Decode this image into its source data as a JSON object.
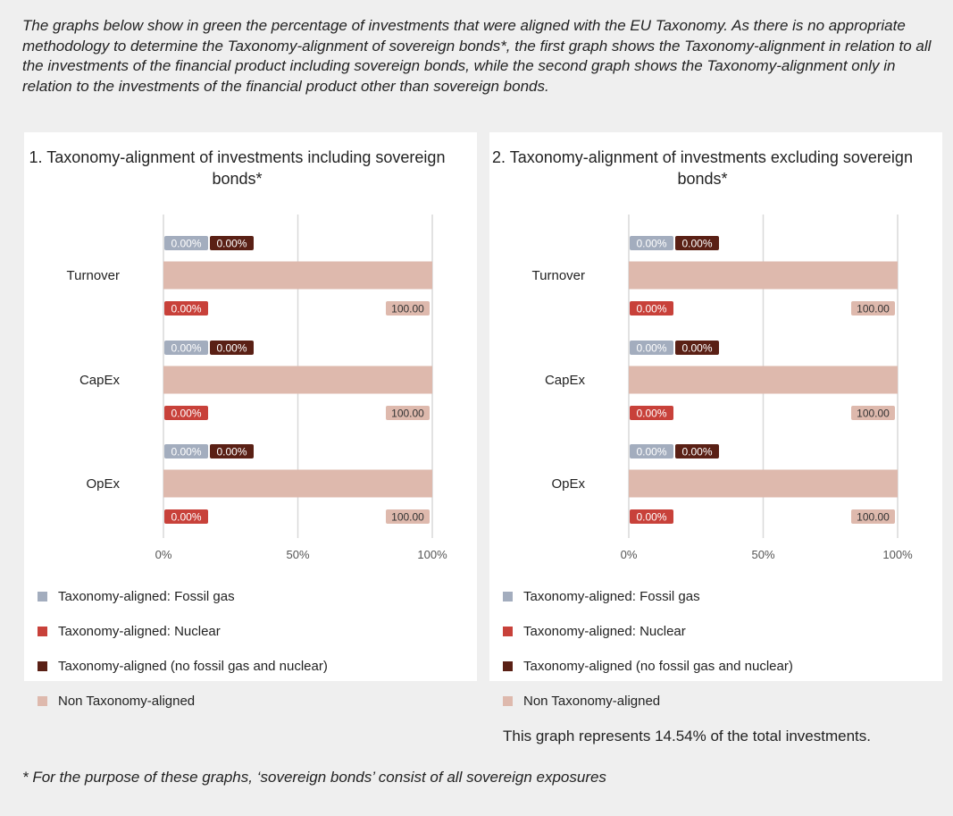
{
  "intro_text": "The graphs below show in green the percentage of investments that were aligned with the EU Taxonomy. As there is no appropriate methodology to determine the Taxonomy-alignment of sovereign bonds*, the first graph shows the Taxonomy-alignment in relation to all the investments of the financial product including sovereign bonds, while the second graph shows the Taxonomy-alignment only in relation to the investments of the financial product other than sovereign bonds.",
  "footnote": "* For the purpose of these graphs, ‘sovereign bonds’ consist of all sovereign exposures",
  "colors": {
    "fossil_gas": "#a3adbe",
    "nuclear": "#c8413a",
    "aligned_other": "#5a2015",
    "non_aligned": "#deb9ad"
  },
  "legend": [
    {
      "key": "fossil_gas",
      "label": "Taxonomy-aligned: Fossil gas"
    },
    {
      "key": "nuclear",
      "label": "Taxonomy-aligned: Nuclear"
    },
    {
      "key": "aligned_other",
      "label": "Taxonomy-aligned (no fossil gas and nuclear)"
    },
    {
      "key": "non_aligned",
      "label": "Non Taxonomy-aligned"
    }
  ],
  "chart_data": [
    {
      "type": "bar",
      "orientation": "horizontal",
      "stacked": true,
      "title": "1. Taxonomy-alignment of investments including sovereign bonds*",
      "categories": [
        "Turnover",
        "CapEx",
        "OpEx"
      ],
      "xlim": [
        0,
        100
      ],
      "x_ticks": [
        "0%",
        "50%",
        "100%"
      ],
      "series": [
        {
          "name": "Taxonomy-aligned: Fossil gas",
          "key": "fossil_gas",
          "values": [
            0,
            0,
            0
          ],
          "labels": [
            "0.00%",
            "0.00%",
            "0.00%"
          ]
        },
        {
          "name": "Taxonomy-aligned: Nuclear",
          "key": "nuclear",
          "values": [
            0,
            0,
            0
          ],
          "labels": [
            "0.00%",
            "0.00%",
            "0.00%"
          ]
        },
        {
          "name": "Taxonomy-aligned (no fossil gas and nuclear)",
          "key": "aligned_other",
          "values": [
            0,
            0,
            0
          ],
          "labels": [
            "0.00%",
            "0.00%",
            "0.00%"
          ]
        },
        {
          "name": "Non Taxonomy-aligned",
          "key": "non_aligned",
          "values": [
            100,
            100,
            100
          ],
          "labels": [
            "100.00",
            "100.00",
            "100.00"
          ]
        }
      ],
      "note": ""
    },
    {
      "type": "bar",
      "orientation": "horizontal",
      "stacked": true,
      "title": "2. Taxonomy-alignment of investments excluding sovereign bonds*",
      "categories": [
        "Turnover",
        "CapEx",
        "OpEx"
      ],
      "xlim": [
        0,
        100
      ],
      "x_ticks": [
        "0%",
        "50%",
        "100%"
      ],
      "series": [
        {
          "name": "Taxonomy-aligned: Fossil gas",
          "key": "fossil_gas",
          "values": [
            0,
            0,
            0
          ],
          "labels": [
            "0.00%",
            "0.00%",
            "0.00%"
          ]
        },
        {
          "name": "Taxonomy-aligned: Nuclear",
          "key": "nuclear",
          "values": [
            0,
            0,
            0
          ],
          "labels": [
            "0.00%",
            "0.00%",
            "0.00%"
          ]
        },
        {
          "name": "Taxonomy-aligned (no fossil gas and nuclear)",
          "key": "aligned_other",
          "values": [
            0,
            0,
            0
          ],
          "labels": [
            "0.00%",
            "0.00%",
            "0.00%"
          ]
        },
        {
          "name": "Non Taxonomy-aligned",
          "key": "non_aligned",
          "values": [
            100,
            100,
            100
          ],
          "labels": [
            "100.00",
            "100.00",
            "100.00"
          ]
        }
      ],
      "note": "This graph represents 14.54% of the total investments."
    }
  ]
}
